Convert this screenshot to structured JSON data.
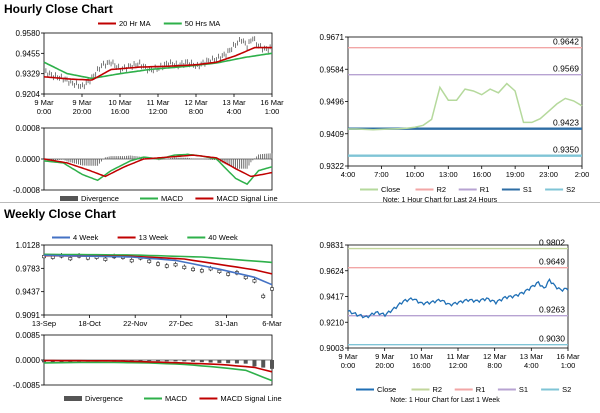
{
  "sections": {
    "hourly_title": "Hourly Close Chart",
    "weekly_title": "Weekly Close Chart"
  },
  "colors": {
    "close": "#b5d99c",
    "close_weekly": "#1f6fb5",
    "r2": "#f2a6a6",
    "r1": "#b7a3d2",
    "s1": "#2e6da4",
    "s2": "#7fc4d6",
    "ma20": "#c00000",
    "ma50": "#2eb04a",
    "ma4": "#4472c4",
    "ma13": "#c00000",
    "ma40": "#2eb04a",
    "macd": "#2eb04a",
    "signal": "#c00000",
    "divergence": "#555555"
  },
  "chart_data": [
    {
      "id": "hourly-price",
      "type": "line",
      "legend": [
        "20 Hr MA",
        "50 Hrs MA"
      ],
      "ylim": [
        0.9204,
        0.958
      ],
      "yticks": [
        "0.9580",
        "0.9455",
        "0.9329",
        "0.9204"
      ],
      "xticks": [
        [
          "9 Mar",
          "0:00"
        ],
        [
          "9 Mar",
          "20:00"
        ],
        [
          "10 Mar",
          "16:00"
        ],
        [
          "11 Mar",
          "12:00"
        ],
        [
          "12 Mar",
          "8:00"
        ],
        [
          "13 Mar",
          "4:00"
        ],
        [
          "16 Mar",
          "1:00"
        ]
      ],
      "n": 120,
      "close_knots": [
        [
          0,
          0.9345
        ],
        [
          5,
          0.9315
        ],
        [
          10,
          0.93
        ],
        [
          15,
          0.927
        ],
        [
          20,
          0.925
        ],
        [
          25,
          0.93
        ],
        [
          30,
          0.938
        ],
        [
          35,
          0.94
        ],
        [
          40,
          0.9355
        ],
        [
          45,
          0.9375
        ],
        [
          50,
          0.939
        ],
        [
          55,
          0.935
        ],
        [
          60,
          0.9365
        ],
        [
          65,
          0.9395
        ],
        [
          70,
          0.938
        ],
        [
          75,
          0.94
        ],
        [
          80,
          0.9375
        ],
        [
          85,
          0.9405
        ],
        [
          90,
          0.942
        ],
        [
          95,
          0.945
        ],
        [
          100,
          0.951
        ],
        [
          103,
          0.954
        ],
        [
          106,
          0.95
        ],
        [
          109,
          0.955
        ],
        [
          112,
          0.95
        ],
        [
          115,
          0.948
        ],
        [
          119,
          0.9485
        ]
      ],
      "ma20_knots": [
        [
          0,
          0.931
        ],
        [
          15,
          0.9295
        ],
        [
          25,
          0.929
        ],
        [
          35,
          0.9355
        ],
        [
          50,
          0.937
        ],
        [
          65,
          0.9375
        ],
        [
          80,
          0.9385
        ],
        [
          90,
          0.94
        ],
        [
          100,
          0.944
        ],
        [
          110,
          0.949
        ],
        [
          119,
          0.949
        ]
      ],
      "ma50_knots": [
        [
          0,
          0.94
        ],
        [
          12,
          0.933
        ],
        [
          25,
          0.93
        ],
        [
          40,
          0.933
        ],
        [
          55,
          0.9355
        ],
        [
          75,
          0.9375
        ],
        [
          90,
          0.9395
        ],
        [
          105,
          0.943
        ],
        [
          119,
          0.9455
        ]
      ]
    },
    {
      "id": "hourly-macd",
      "type": "bar+line",
      "ylim": [
        -0.0008,
        0.0008
      ],
      "yticks": [
        "0.0008",
        "0.0000",
        "-0.0008"
      ],
      "legend": [
        "Divergence",
        "MACD",
        "MACD Signal Line"
      ],
      "n": 120,
      "macd_knots": [
        [
          0,
          -5e-05
        ],
        [
          10,
          -0.0001
        ],
        [
          20,
          -0.0004
        ],
        [
          28,
          -0.00055
        ],
        [
          35,
          -0.0003
        ],
        [
          45,
          -5e-05
        ],
        [
          52,
          5e-05
        ],
        [
          60,
          0.0
        ],
        [
          68,
          0.0001
        ],
        [
          75,
          0.00012
        ],
        [
          82,
          8e-05
        ],
        [
          90,
          0.0
        ],
        [
          100,
          -0.0005
        ],
        [
          106,
          -0.00065
        ],
        [
          112,
          -0.0003
        ],
        [
          119,
          -0.0002
        ]
      ],
      "signal_knots": [
        [
          0,
          0.0
        ],
        [
          12,
          -0.0001
        ],
        [
          24,
          -0.0003
        ],
        [
          32,
          -0.00045
        ],
        [
          42,
          -0.0002
        ],
        [
          52,
          0.0
        ],
        [
          65,
          5e-05
        ],
        [
          78,
          0.0001
        ],
        [
          90,
          3e-05
        ],
        [
          100,
          -0.00025
        ],
        [
          108,
          -0.00045
        ],
        [
          114,
          -0.0004
        ],
        [
          119,
          -0.00035
        ]
      ]
    },
    {
      "id": "hourly-levels",
      "type": "line",
      "ylim": [
        0.9322,
        0.9671
      ],
      "yticks": [
        "0.9671",
        "0.9584",
        "0.9496",
        "0.9409",
        "0.9322"
      ],
      "xticks": [
        "4:00",
        "7:00",
        "10:00",
        "13:00",
        "16:00",
        "19:00",
        "23:00",
        "2:00"
      ],
      "levels": [
        {
          "name": "R2",
          "value": 0.9642,
          "label": "0.9642"
        },
        {
          "name": "R1",
          "value": 0.9569,
          "label": "0.9569"
        },
        {
          "name": "S1",
          "value": 0.9423,
          "label": "0.9423"
        },
        {
          "name": "S2",
          "value": 0.935,
          "label": "0.9350"
        }
      ],
      "close": [
        0.9422,
        0.9422,
        0.9421,
        0.942,
        0.9421,
        0.9422,
        0.9423,
        0.9424,
        0.9427,
        0.9432,
        0.9448,
        0.9535,
        0.95,
        0.95,
        0.953,
        0.9525,
        0.9515,
        0.953,
        0.952,
        0.9545,
        0.9525,
        0.944,
        0.944,
        0.945,
        0.947,
        0.949,
        0.9505,
        0.9498,
        0.9485
      ],
      "legend": [
        "Close",
        "R2",
        "R1",
        "S1",
        "S2"
      ],
      "note": "Note: 1 Hour Chart for Last 24 Hours"
    },
    {
      "id": "weekly-price",
      "type": "line+ohlc",
      "legend": [
        "4 Week",
        "13 Week",
        "40 Week"
      ],
      "ylim": [
        0.9091,
        1.0128
      ],
      "yticks": [
        "1.0128",
        "0.9783",
        "0.9437",
        "0.9091"
      ],
      "xticks": [
        "13-Sep",
        "18-Oct",
        "22-Nov",
        "27-Dec",
        "31-Jan",
        "6-Mar"
      ],
      "n": 27,
      "close": [
        0.996,
        0.995,
        0.997,
        0.993,
        0.997,
        0.994,
        0.995,
        0.992,
        0.996,
        0.995,
        0.99,
        0.994,
        0.989,
        0.985,
        0.982,
        0.984,
        0.98,
        0.977,
        0.975,
        0.978,
        0.974,
        0.97,
        0.972,
        0.965,
        0.96,
        0.937,
        0.948
      ],
      "ma4_knots": [
        [
          0,
          0.9975
        ],
        [
          10,
          0.995
        ],
        [
          15,
          0.99
        ],
        [
          20,
          0.977
        ],
        [
          24,
          0.965
        ],
        [
          26,
          0.954
        ]
      ],
      "ma13_knots": [
        [
          0,
          0.997
        ],
        [
          10,
          0.996
        ],
        [
          16,
          0.992
        ],
        [
          20,
          0.984
        ],
        [
          24,
          0.976
        ],
        [
          26,
          0.97
        ]
      ],
      "ma40_knots": [
        [
          0,
          0.999
        ],
        [
          10,
          0.998
        ],
        [
          18,
          0.995
        ],
        [
          26,
          0.987
        ]
      ]
    },
    {
      "id": "weekly-macd",
      "type": "bar+line",
      "ylim": [
        -0.0085,
        0.0085
      ],
      "yticks": [
        "0.0085",
        "0.0000",
        "-0.0085"
      ],
      "legend": [
        "Divergence",
        "MACD",
        "MACD Signal Line"
      ],
      "n": 27,
      "macd_knots": [
        [
          0,
          -0.001
        ],
        [
          6,
          -0.0008
        ],
        [
          12,
          -0.001
        ],
        [
          16,
          -0.0015
        ],
        [
          20,
          -0.0025
        ],
        [
          23,
          -0.0035
        ],
        [
          26,
          -0.007
        ]
      ],
      "signal_knots": [
        [
          0,
          -0.0002
        ],
        [
          8,
          -0.0003
        ],
        [
          14,
          -0.0008
        ],
        [
          20,
          -0.0015
        ],
        [
          24,
          -0.0025
        ],
        [
          26,
          -0.004
        ]
      ]
    },
    {
      "id": "weekly-levels",
      "type": "line",
      "ylim": [
        0.9003,
        0.9831
      ],
      "yticks": [
        "0.9831",
        "0.9624",
        "0.9417",
        "0.9210",
        "0.9003"
      ],
      "xticks": [
        [
          "9 Mar",
          "0:00"
        ],
        [
          "9 Mar",
          "20:00"
        ],
        [
          "10 Mar",
          "16:00"
        ],
        [
          "11 Mar",
          "12:00"
        ],
        [
          "12 Mar",
          "8:00"
        ],
        [
          "13 Mar",
          "4:00"
        ],
        [
          "16 Mar",
          "1:00"
        ]
      ],
      "levels": [
        {
          "name": "R2",
          "value": 0.9802,
          "label": "0.9802"
        },
        {
          "name": "R1",
          "value": 0.9649,
          "label": "0.9649"
        },
        {
          "name": "S1",
          "value": 0.9263,
          "label": "0.9263"
        },
        {
          "name": "S2",
          "value": 0.903,
          "label": "0.9030"
        }
      ],
      "n": 120,
      "close_knots": [
        [
          0,
          0.93
        ],
        [
          5,
          0.927
        ],
        [
          10,
          0.925
        ],
        [
          15,
          0.929
        ],
        [
          20,
          0.927
        ],
        [
          25,
          0.932
        ],
        [
          30,
          0.938
        ],
        [
          35,
          0.94
        ],
        [
          40,
          0.936
        ],
        [
          45,
          0.937
        ],
        [
          50,
          0.939
        ],
        [
          55,
          0.935
        ],
        [
          60,
          0.937
        ],
        [
          65,
          0.939
        ],
        [
          70,
          0.938
        ],
        [
          75,
          0.94
        ],
        [
          80,
          0.937
        ],
        [
          85,
          0.941
        ],
        [
          90,
          0.942
        ],
        [
          95,
          0.945
        ],
        [
          100,
          0.95
        ],
        [
          103,
          0.953
        ],
        [
          106,
          0.948
        ],
        [
          109,
          0.955
        ],
        [
          112,
          0.95
        ],
        [
          115,
          0.947
        ],
        [
          119,
          0.948
        ]
      ],
      "legend": [
        "Close",
        "R2",
        "R1",
        "S1",
        "S2"
      ],
      "note": "Note: 1 Hour Chart for Last 1 Week"
    }
  ]
}
